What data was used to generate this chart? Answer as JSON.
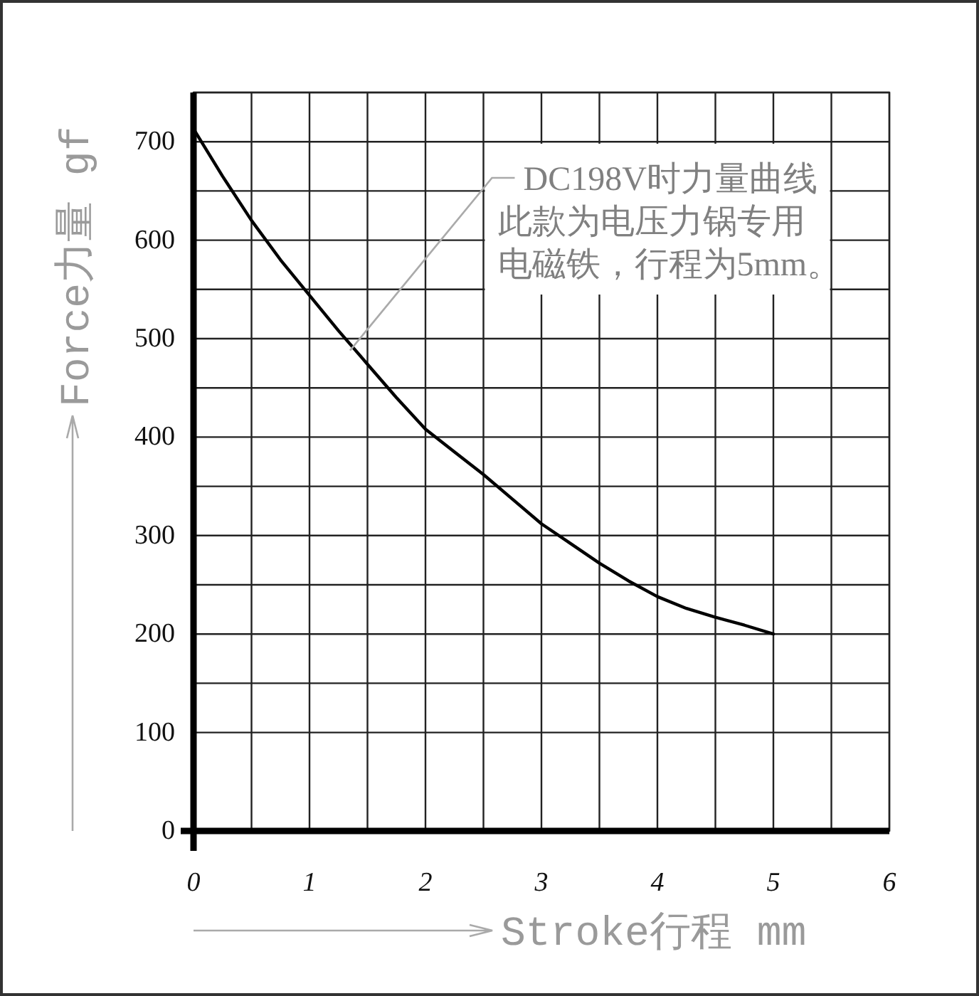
{
  "chart_data": {
    "type": "line",
    "xlabel": "Stroke行程 mm",
    "ylabel": "Force力量 gf",
    "x": [
      0,
      0.25,
      0.5,
      0.75,
      1,
      1.25,
      1.5,
      1.75,
      2,
      2.25,
      2.5,
      2.75,
      3,
      3.25,
      3.5,
      3.75,
      4,
      4.25,
      4.5,
      4.75,
      5
    ],
    "series": [
      {
        "color": "#000000",
        "values": [
          713,
          665,
          620,
          580,
          544,
          508,
          474,
          440,
          408,
          385,
          362,
          337,
          312,
          292,
          272,
          254,
          238,
          226,
          217,
          209,
          200
        ]
      }
    ],
    "xlim": [
      0,
      6
    ],
    "ylim": [
      0,
      750
    ],
    "xticks": [
      0,
      {
        "value": 0.5,
        "label": null
      },
      1,
      {
        "value": 1.5,
        "label": null
      },
      2,
      {
        "value": 2.5,
        "label": null
      },
      3,
      {
        "value": 3.5,
        "label": null
      },
      4,
      {
        "value": 4.5,
        "label": null
      },
      5,
      {
        "value": 5.5,
        "label": null
      },
      6
    ],
    "yticks": [
      0,
      100,
      {
        "value": 150,
        "label": null
      },
      200,
      {
        "value": 250,
        "label": null
      },
      300,
      {
        "value": 350,
        "label": null
      },
      400,
      {
        "value": 450,
        "label": null
      },
      500,
      {
        "value": 550,
        "label": null
      },
      600,
      {
        "value": 650,
        "label": null
      },
      700,
      {
        "value": 750,
        "label": null
      }
    ],
    "grid": true,
    "annotations": [
      {
        "text": "DC198V时力量曲线",
        "x": 1.35,
        "y": 488
      },
      "此款为电压力锅专用",
      "电磁铁，行程为5mm。"
    ]
  }
}
